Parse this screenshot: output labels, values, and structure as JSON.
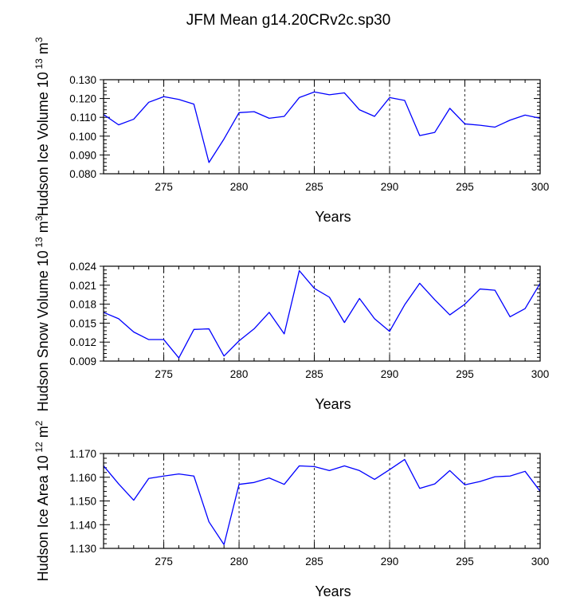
{
  "figure": {
    "title": "JFM Mean g14.20CRv2c.sp30"
  },
  "chart_data": [
    {
      "type": "line",
      "title": "JFM Mean g14.20CRv2c.sp30",
      "xlabel": "Years",
      "ylabel": "Hudson Ice Volume 10",
      "ylabel_exp": "13",
      "ylabel_unit": "m",
      "ylabel_unit_exp": "3",
      "xlim": [
        271,
        300
      ],
      "ylim": [
        0.08,
        0.13
      ],
      "xticks": [
        275,
        280,
        285,
        290,
        295,
        300
      ],
      "xticklabels": [
        "275",
        "280",
        "285",
        "290",
        "295",
        "300"
      ],
      "yticks": [
        0.08,
        0.09,
        0.1,
        0.11,
        0.12,
        0.13
      ],
      "yticklabels": [
        "0.080",
        "0.090",
        "0.100",
        "0.110",
        "0.120",
        "0.130"
      ],
      "gridlines_x": [
        275,
        280,
        285,
        290,
        295
      ],
      "line_color": "#0000ff",
      "x": [
        271,
        272,
        273,
        274,
        275,
        276,
        277,
        278,
        279,
        280,
        281,
        282,
        283,
        284,
        285,
        286,
        287,
        288,
        289,
        290,
        291,
        292,
        293,
        294,
        295,
        296,
        297,
        298,
        299,
        300
      ],
      "y": [
        0.1115,
        0.106,
        0.109,
        0.118,
        0.121,
        0.1195,
        0.117,
        0.086,
        0.0985,
        0.1125,
        0.113,
        0.1095,
        0.1105,
        0.1205,
        0.1235,
        0.122,
        0.123,
        0.114,
        0.1105,
        0.1205,
        0.119,
        0.1003,
        0.102,
        0.1148,
        0.1065,
        0.1058,
        0.1048,
        0.1085,
        0.1112,
        0.1095
      ]
    },
    {
      "type": "line",
      "xlabel": "Years",
      "ylabel": "Hudson Snow Volume 10",
      "ylabel_exp": "13",
      "ylabel_unit": "m",
      "ylabel_unit_exp": "3",
      "xlim": [
        271,
        300
      ],
      "ylim": [
        0.009,
        0.024
      ],
      "xticks": [
        275,
        280,
        285,
        290,
        295,
        300
      ],
      "xticklabels": [
        "275",
        "280",
        "285",
        "290",
        "295",
        "300"
      ],
      "yticks": [
        0.009,
        0.012,
        0.015,
        0.018,
        0.021,
        0.024
      ],
      "yticklabels": [
        "0.009",
        "0.012",
        "0.015",
        "0.018",
        "0.021",
        "0.024"
      ],
      "gridlines_x": [
        275,
        280,
        285,
        290,
        295
      ],
      "line_color": "#0000ff",
      "x": [
        271,
        272,
        273,
        274,
        275,
        276,
        277,
        278,
        279,
        280,
        281,
        282,
        283,
        284,
        285,
        286,
        287,
        288,
        289,
        290,
        291,
        292,
        293,
        294,
        295,
        296,
        297,
        298,
        299,
        300
      ],
      "y": [
        0.0167,
        0.0157,
        0.0136,
        0.0124,
        0.0124,
        0.0095,
        0.014,
        0.0141,
        0.0098,
        0.0122,
        0.0141,
        0.0167,
        0.0133,
        0.0233,
        0.0205,
        0.0191,
        0.0151,
        0.0189,
        0.0157,
        0.0137,
        0.0179,
        0.0213,
        0.0187,
        0.0163,
        0.018,
        0.0204,
        0.0202,
        0.016,
        0.0173,
        0.0213
      ]
    },
    {
      "type": "line",
      "xlabel": "Years",
      "ylabel": "Hudson Ice Area 10",
      "ylabel_exp": "12",
      "ylabel_unit": "m",
      "ylabel_unit_exp": "2",
      "xlim": [
        271,
        300
      ],
      "ylim": [
        1.13,
        1.17
      ],
      "xticks": [
        275,
        280,
        285,
        290,
        295,
        300
      ],
      "xticklabels": [
        "275",
        "280",
        "285",
        "290",
        "295",
        "300"
      ],
      "yticks": [
        1.13,
        1.14,
        1.15,
        1.16,
        1.17
      ],
      "yticklabels": [
        "1.130",
        "1.140",
        "1.150",
        "1.160",
        "1.170"
      ],
      "gridlines_x": [
        275,
        280,
        285,
        290,
        295
      ],
      "line_color": "#0000ff",
      "x": [
        271,
        272,
        273,
        274,
        275,
        276,
        277,
        278,
        279,
        280,
        281,
        282,
        283,
        284,
        285,
        286,
        287,
        288,
        289,
        290,
        291,
        292,
        293,
        294,
        295,
        296,
        297,
        298,
        299,
        300
      ],
      "y": [
        1.1648,
        1.1572,
        1.1503,
        1.1595,
        1.1605,
        1.1614,
        1.1605,
        1.1412,
        1.1316,
        1.157,
        1.1578,
        1.1597,
        1.157,
        1.1648,
        1.1645,
        1.1628,
        1.1648,
        1.1628,
        1.1591,
        1.1632,
        1.1675,
        1.1553,
        1.1572,
        1.1628,
        1.1568,
        1.1582,
        1.1602,
        1.1605,
        1.1625,
        1.1541
      ]
    }
  ]
}
